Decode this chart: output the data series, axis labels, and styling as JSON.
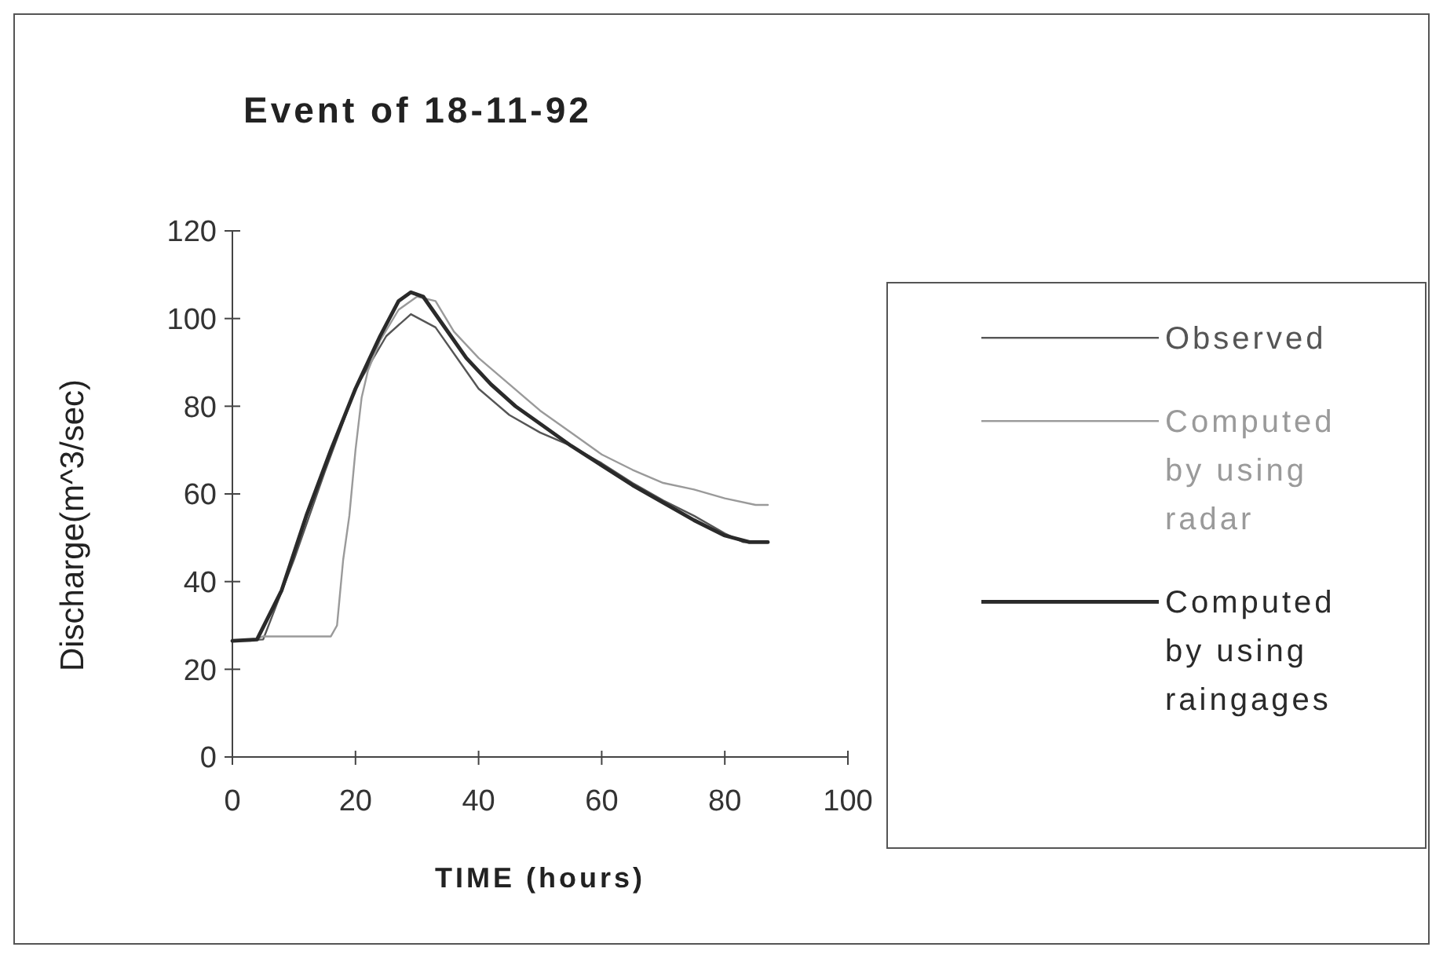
{
  "chart_data": {
    "type": "line",
    "title": "Event of 18-11-92",
    "xlabel": "TIME (hours)",
    "ylabel": "Discharge(m^3/sec)",
    "xlim": [
      0,
      100
    ],
    "xticks": [
      0,
      20,
      40,
      60,
      80,
      100
    ],
    "ylim": [
      0,
      120
    ],
    "yticks": [
      0,
      20,
      40,
      60,
      80,
      100,
      120
    ],
    "grid": false,
    "legend": "right",
    "series": [
      {
        "name": "Observed",
        "color": "#555555",
        "x": [
          0,
          5,
          10,
          15,
          20,
          25,
          29,
          33,
          37,
          40,
          45,
          50,
          55,
          60,
          65,
          70,
          75,
          80,
          83,
          87
        ],
        "values": [
          26.5,
          26.8,
          45,
          65,
          84,
          96,
          101,
          98,
          90,
          84,
          78,
          74,
          71,
          67,
          62.5,
          58.5,
          55,
          51,
          49,
          49
        ]
      },
      {
        "name": "Computed by using radar",
        "color": "#9a9a9a",
        "x": [
          0,
          3,
          5,
          10,
          16,
          17,
          18,
          19,
          20,
          21,
          22,
          24,
          27,
          30,
          33,
          36,
          40,
          45,
          50,
          55,
          60,
          65,
          70,
          75,
          80,
          85,
          87
        ],
        "values": [
          26.5,
          26.5,
          27.5,
          27.5,
          27.5,
          30,
          45,
          55,
          70,
          82,
          88,
          95,
          102,
          105,
          104,
          97,
          91,
          85,
          79,
          74,
          69,
          65.5,
          62.5,
          61,
          59,
          57.5,
          57.5
        ]
      },
      {
        "name": "Computed by using raingages",
        "color": "#2a2a2a",
        "x": [
          0,
          4,
          8,
          12,
          16,
          20,
          24,
          27,
          29,
          31,
          34,
          38,
          42,
          46,
          50,
          55,
          60,
          65,
          70,
          75,
          80,
          84,
          87
        ],
        "values": [
          26.5,
          26.8,
          38,
          55,
          70,
          84,
          96,
          104,
          106,
          105,
          99,
          91,
          85,
          80,
          76,
          71,
          66.5,
          62,
          58,
          54,
          50.5,
          49,
          49
        ]
      }
    ]
  }
}
